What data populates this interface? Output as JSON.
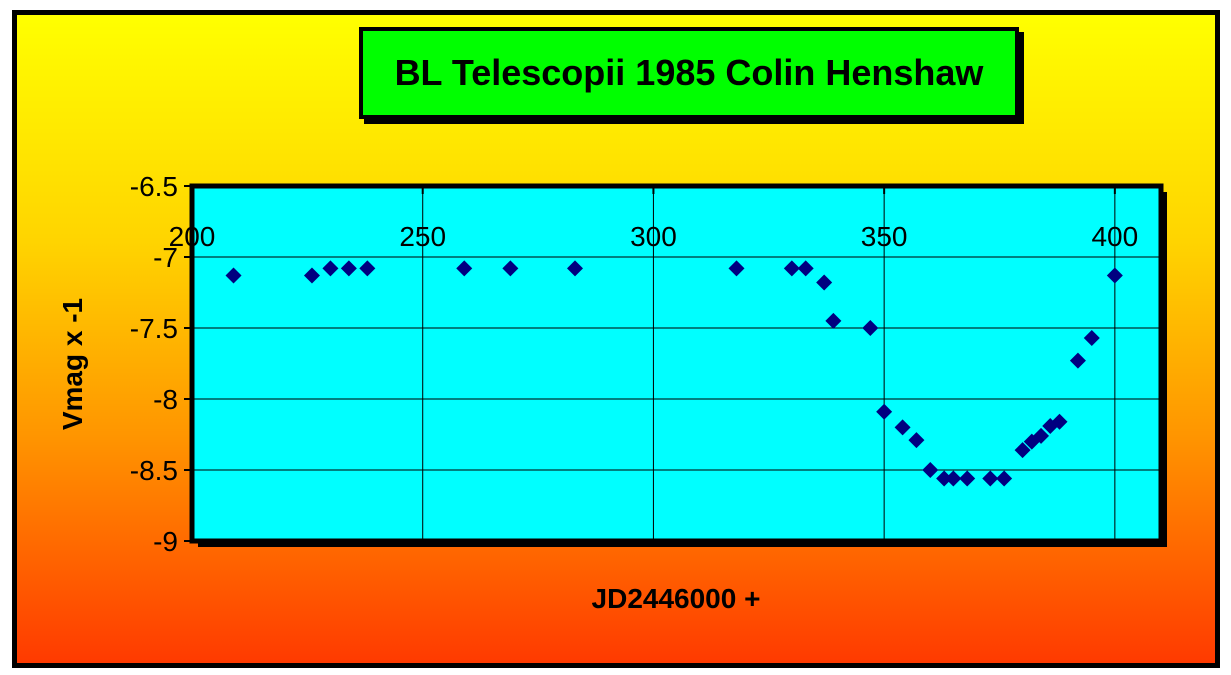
{
  "chart_data": {
    "type": "scatter",
    "title": "BL Telescopii 1985 Colin Henshaw",
    "xlabel": "JD2446000 +",
    "ylabel": "Vmag x -1",
    "xlim": [
      200,
      410
    ],
    "ylim": [
      -9,
      -6.5
    ],
    "xticks": [
      200,
      250,
      300,
      350,
      400
    ],
    "xtick_labels": [
      "200",
      "250",
      "300",
      "350",
      "400"
    ],
    "yticks": [
      -6.5,
      -7,
      -7.5,
      -8,
      -8.5,
      -9
    ],
    "ytick_labels": [
      "-6.5",
      "-7",
      "-7.5",
      "-8",
      "-8.5",
      "-9"
    ],
    "x_axis_position": -6.5,
    "grid": true,
    "marker": "diamond",
    "colors": {
      "marker": "#000080",
      "plot_bg": "#00ffff",
      "title_bg": "#00ff00"
    },
    "series": [
      {
        "points": [
          [
            209,
            -7.13
          ],
          [
            226,
            -7.13
          ],
          [
            230,
            -7.08
          ],
          [
            234,
            -7.08
          ],
          [
            238,
            -7.08
          ],
          [
            259,
            -7.08
          ],
          [
            269,
            -7.08
          ],
          [
            283,
            -7.08
          ],
          [
            318,
            -7.08
          ],
          [
            330,
            -7.08
          ],
          [
            333,
            -7.08
          ],
          [
            337,
            -7.18
          ],
          [
            339,
            -7.45
          ],
          [
            347,
            -7.5
          ],
          [
            350,
            -8.09
          ],
          [
            354,
            -8.2
          ],
          [
            357,
            -8.29
          ],
          [
            360,
            -8.5
          ],
          [
            363,
            -8.56
          ],
          [
            365,
            -8.56
          ],
          [
            368,
            -8.56
          ],
          [
            373,
            -8.56
          ],
          [
            376,
            -8.56
          ],
          [
            380,
            -8.36
          ],
          [
            382,
            -8.3
          ],
          [
            384,
            -8.26
          ],
          [
            386,
            -8.19
          ],
          [
            388,
            -8.16
          ],
          [
            392,
            -7.73
          ],
          [
            395,
            -7.57
          ],
          [
            400,
            -7.13
          ]
        ]
      }
    ]
  }
}
